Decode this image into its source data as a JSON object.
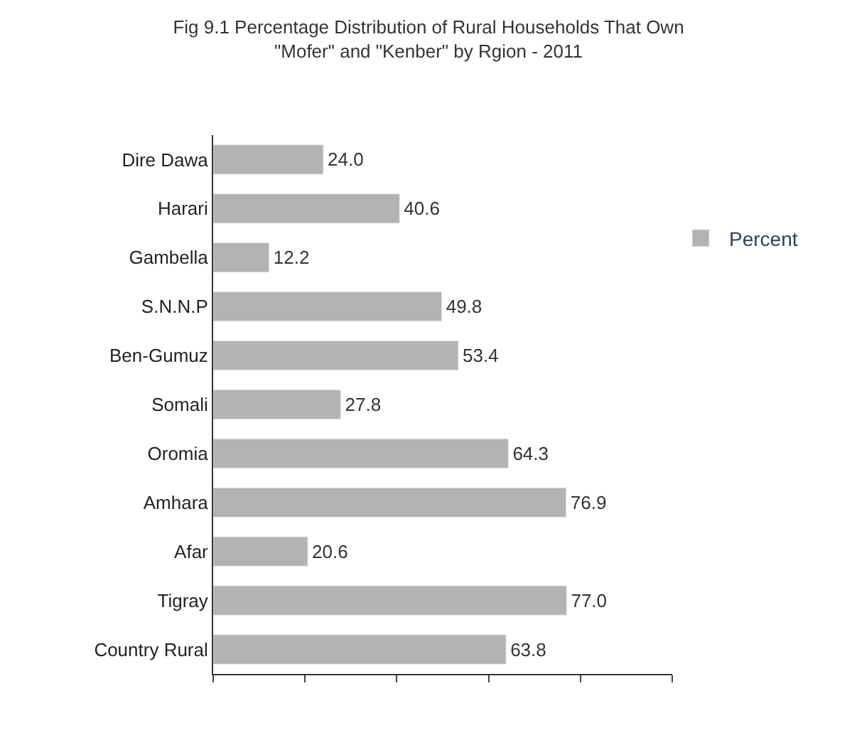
{
  "chart_data": {
    "type": "bar",
    "orientation": "horizontal",
    "title": "Fig 9.1 Percentage Distribution of Rural Households That Own\n\"Mofer\" and \"Kenber\" by Rgion - 2011",
    "categories": [
      "Dire Dawa",
      "Harari",
      "Gambella",
      "S.N.N.P",
      "Ben-Gumuz",
      "Somali",
      "Oromia",
      "Amhara",
      "Afar",
      "Tigray",
      "Country Rural"
    ],
    "series": [
      {
        "name": "Percent",
        "color": "#b3b3b3",
        "values": [
          24.0,
          40.6,
          12.2,
          49.8,
          53.4,
          27.8,
          64.3,
          76.9,
          20.6,
          77.0,
          63.8
        ],
        "value_labels": [
          "24.0",
          "40.6",
          "12.2",
          "49.8",
          "53.4",
          "27.8",
          "64.3",
          "76.9",
          "20.6",
          "77.0",
          "63.8"
        ]
      }
    ],
    "xlim": [
      0,
      100
    ],
    "xticks": [
      {
        "value": 0,
        "label": null
      },
      {
        "value": 20,
        "label": null
      },
      {
        "value": 40,
        "label": null
      },
      {
        "value": 60,
        "label": null
      },
      {
        "value": 80,
        "label": null
      },
      {
        "value": 100,
        "label": null
      }
    ],
    "legend": "right"
  }
}
